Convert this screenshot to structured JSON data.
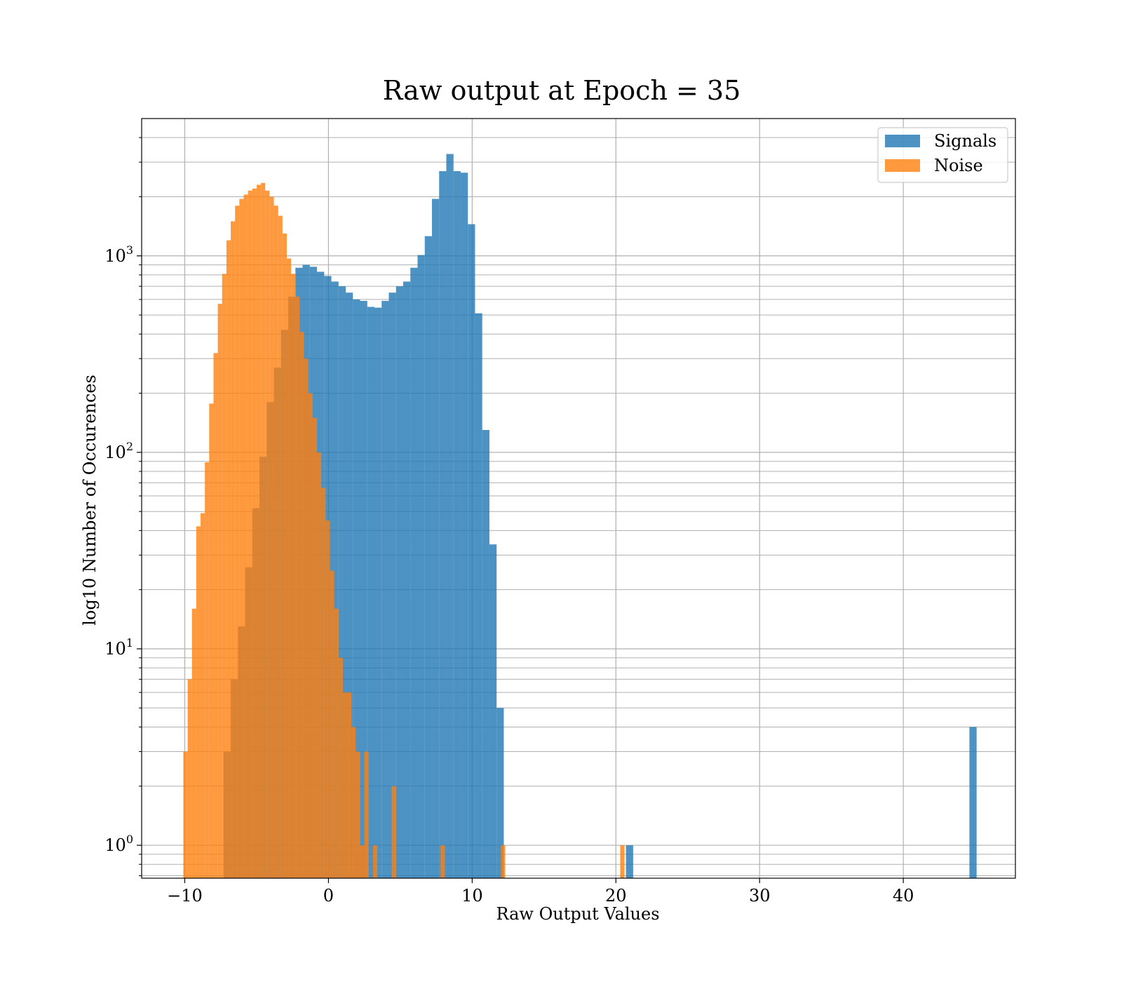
{
  "chart_data": {
    "type": "bar",
    "title": "Raw output at Epoch = 35",
    "xlabel": "Raw Output Values",
    "ylabel": "log10 Number of Occurences",
    "xlim": [
      -13,
      47.8
    ],
    "ylim": [
      0.68,
      5000
    ],
    "yscale": "log",
    "grid": true,
    "legend_position": "top-right",
    "x_ticks": [
      {
        "value": -10,
        "label": "−10"
      },
      {
        "value": 0,
        "label": "0"
      },
      {
        "value": 10,
        "label": "10"
      },
      {
        "value": 20,
        "label": "20"
      },
      {
        "value": 30,
        "label": "30"
      },
      {
        "value": 40,
        "label": "40"
      }
    ],
    "y_ticks": [
      {
        "value": 1,
        "base": "10",
        "exp": "0"
      },
      {
        "value": 10,
        "base": "10",
        "exp": "1"
      },
      {
        "value": 100,
        "base": "10",
        "exp": "2"
      },
      {
        "value": 1000,
        "base": "10",
        "exp": "3"
      }
    ],
    "series": [
      {
        "name": "Signals",
        "color": "#1f77b4",
        "opacity": 0.8,
        "bins": [
          [
            -7.3,
            -6.8,
            3
          ],
          [
            -6.8,
            -6.3,
            7
          ],
          [
            -6.3,
            -5.8,
            13
          ],
          [
            -5.8,
            -5.3,
            26
          ],
          [
            -5.3,
            -4.8,
            52
          ],
          [
            -4.8,
            -4.3,
            95
          ],
          [
            -4.3,
            -3.8,
            180
          ],
          [
            -3.8,
            -3.3,
            270
          ],
          [
            -3.3,
            -2.8,
            420
          ],
          [
            -2.8,
            -2.3,
            620
          ],
          [
            -2.3,
            -1.8,
            870
          ],
          [
            -1.8,
            -1.3,
            900
          ],
          [
            -1.3,
            -0.8,
            880
          ],
          [
            -0.8,
            -0.3,
            830
          ],
          [
            -0.3,
            0.2,
            790
          ],
          [
            0.2,
            0.7,
            740
          ],
          [
            0.7,
            1.2,
            700
          ],
          [
            1.2,
            1.7,
            650
          ],
          [
            1.7,
            2.2,
            600
          ],
          [
            2.2,
            2.7,
            590
          ],
          [
            2.7,
            3.2,
            550
          ],
          [
            3.2,
            3.7,
            545
          ],
          [
            3.7,
            4.2,
            590
          ],
          [
            4.2,
            4.7,
            650
          ],
          [
            4.7,
            5.2,
            700
          ],
          [
            5.2,
            5.7,
            740
          ],
          [
            5.7,
            6.2,
            870
          ],
          [
            6.2,
            6.7,
            1010
          ],
          [
            6.7,
            7.2,
            1260
          ],
          [
            7.2,
            7.7,
            1950
          ],
          [
            7.7,
            8.2,
            2700
          ],
          [
            8.2,
            8.7,
            3300
          ],
          [
            8.7,
            9.2,
            2700
          ],
          [
            9.2,
            9.7,
            2650
          ],
          [
            9.7,
            10.2,
            1450
          ],
          [
            10.2,
            10.7,
            510
          ],
          [
            10.7,
            11.2,
            130
          ],
          [
            11.2,
            11.7,
            34
          ],
          [
            11.7,
            12.2,
            5
          ],
          [
            20.7,
            21.2,
            1
          ],
          [
            44.6,
            45.1,
            4
          ]
        ]
      },
      {
        "name": "Noise",
        "color": "#ff7f0e",
        "opacity": 0.8,
        "bins": [
          [
            -10.1,
            -9.8,
            3
          ],
          [
            -9.8,
            -9.5,
            7
          ],
          [
            -9.5,
            -9.2,
            16
          ],
          [
            -9.2,
            -8.9,
            42
          ],
          [
            -8.9,
            -8.6,
            49
          ],
          [
            -8.6,
            -8.3,
            89
          ],
          [
            -8.3,
            -8.0,
            177
          ],
          [
            -8.0,
            -7.7,
            320
          ],
          [
            -7.7,
            -7.4,
            570
          ],
          [
            -7.4,
            -7.1,
            810
          ],
          [
            -7.1,
            -6.8,
            1200
          ],
          [
            -6.8,
            -6.5,
            1500
          ],
          [
            -6.5,
            -6.2,
            1800
          ],
          [
            -6.2,
            -5.9,
            1950
          ],
          [
            -5.9,
            -5.6,
            2050
          ],
          [
            -5.6,
            -5.3,
            2150
          ],
          [
            -5.3,
            -5.0,
            2200
          ],
          [
            -5.0,
            -4.7,
            2300
          ],
          [
            -4.7,
            -4.4,
            2350
          ],
          [
            -4.4,
            -4.1,
            2150
          ],
          [
            -4.1,
            -3.8,
            2000
          ],
          [
            -3.8,
            -3.5,
            1800
          ],
          [
            -3.5,
            -3.2,
            1600
          ],
          [
            -3.2,
            -2.9,
            1300
          ],
          [
            -2.9,
            -2.6,
            970
          ],
          [
            -2.6,
            -2.3,
            810
          ],
          [
            -2.3,
            -2.0,
            620
          ],
          [
            -2.0,
            -1.7,
            410
          ],
          [
            -1.7,
            -1.4,
            300
          ],
          [
            -1.4,
            -1.1,
            200
          ],
          [
            -1.1,
            -0.8,
            150
          ],
          [
            -0.8,
            -0.5,
            100
          ],
          [
            -0.5,
            -0.2,
            66
          ],
          [
            -0.2,
            0.1,
            45
          ],
          [
            0.1,
            0.4,
            25
          ],
          [
            0.4,
            0.7,
            16
          ],
          [
            0.7,
            1.0,
            9
          ],
          [
            1.0,
            1.3,
            6
          ],
          [
            1.3,
            1.6,
            6
          ],
          [
            1.6,
            1.9,
            4
          ],
          [
            1.9,
            2.2,
            3
          ],
          [
            2.2,
            2.5,
            1
          ],
          [
            2.5,
            2.8,
            3
          ],
          [
            3.1,
            3.4,
            1
          ],
          [
            4.4,
            4.7,
            2
          ],
          [
            7.8,
            8.1,
            1
          ],
          [
            12.0,
            12.3,
            1
          ],
          [
            20.3,
            20.6,
            1
          ]
        ]
      }
    ]
  }
}
